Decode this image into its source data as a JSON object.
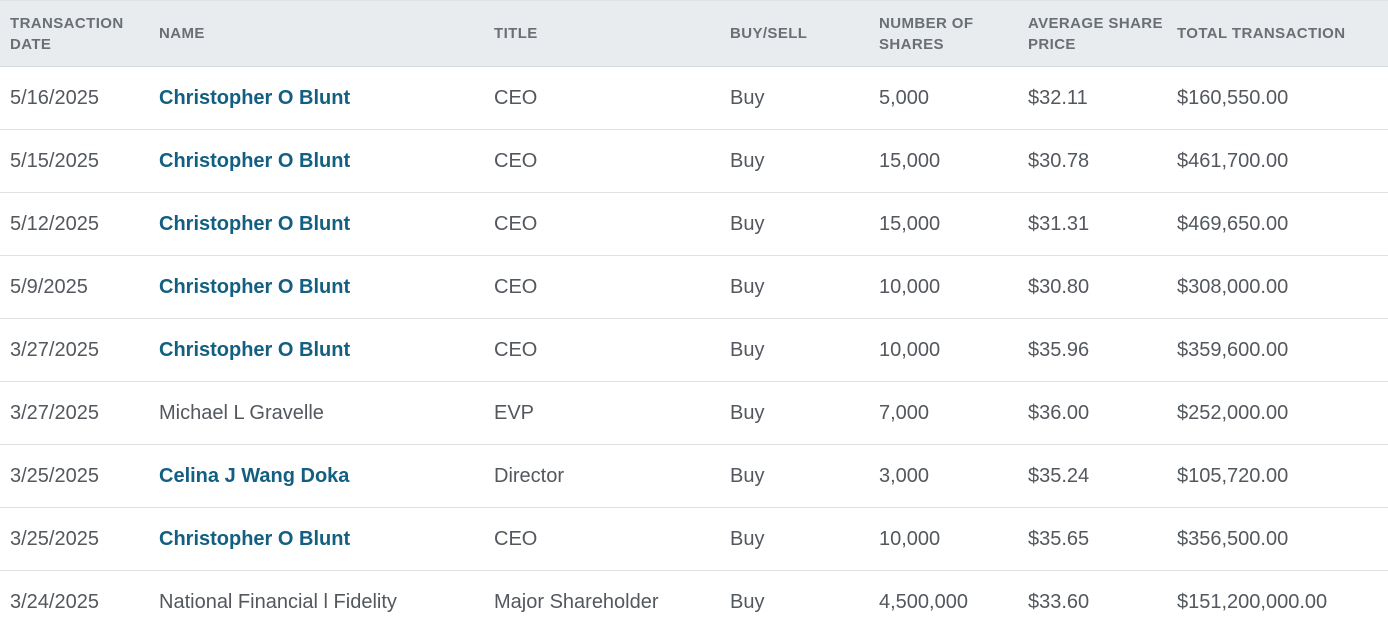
{
  "table": {
    "headers": {
      "date": "TRANSACTION DATE",
      "name": "NAME",
      "title": "TITLE",
      "side": "BUY/SELL",
      "shares": "NUMBER OF SHARES",
      "price": "AVERAGE SHARE PRICE",
      "total": "TOTAL TRANSACTION"
    },
    "rows": [
      {
        "date": "5/16/2025",
        "name": "Christopher O Blunt",
        "link": true,
        "title": "CEO",
        "side": "Buy",
        "shares": "5,000",
        "price": "$32.11",
        "total": "$160,550.00"
      },
      {
        "date": "5/15/2025",
        "name": "Christopher O Blunt",
        "link": true,
        "title": "CEO",
        "side": "Buy",
        "shares": "15,000",
        "price": "$30.78",
        "total": "$461,700.00"
      },
      {
        "date": "5/12/2025",
        "name": "Christopher O Blunt",
        "link": true,
        "title": "CEO",
        "side": "Buy",
        "shares": "15,000",
        "price": "$31.31",
        "total": "$469,650.00"
      },
      {
        "date": "5/9/2025",
        "name": "Christopher O Blunt",
        "link": true,
        "title": "CEO",
        "side": "Buy",
        "shares": "10,000",
        "price": "$30.80",
        "total": "$308,000.00"
      },
      {
        "date": "3/27/2025",
        "name": "Christopher O Blunt",
        "link": true,
        "title": "CEO",
        "side": "Buy",
        "shares": "10,000",
        "price": "$35.96",
        "total": "$359,600.00"
      },
      {
        "date": "3/27/2025",
        "name": "Michael L Gravelle",
        "link": false,
        "title": "EVP",
        "side": "Buy",
        "shares": "7,000",
        "price": "$36.00",
        "total": "$252,000.00"
      },
      {
        "date": "3/25/2025",
        "name": "Celina J Wang Doka",
        "link": true,
        "title": "Director",
        "side": "Buy",
        "shares": "3,000",
        "price": "$35.24",
        "total": "$105,720.00"
      },
      {
        "date": "3/25/2025",
        "name": "Christopher O Blunt",
        "link": true,
        "title": "CEO",
        "side": "Buy",
        "shares": "10,000",
        "price": "$35.65",
        "total": "$356,500.00"
      },
      {
        "date": "3/24/2025",
        "name": "National Financial l Fidelity",
        "link": false,
        "title": "Major Shareholder",
        "side": "Buy",
        "shares": "4,500,000",
        "price": "$33.60",
        "total": "$151,200,000.00"
      }
    ]
  },
  "colors": {
    "header_bg": "#e9ecee",
    "link": "#135f82",
    "text": "#53585e"
  }
}
